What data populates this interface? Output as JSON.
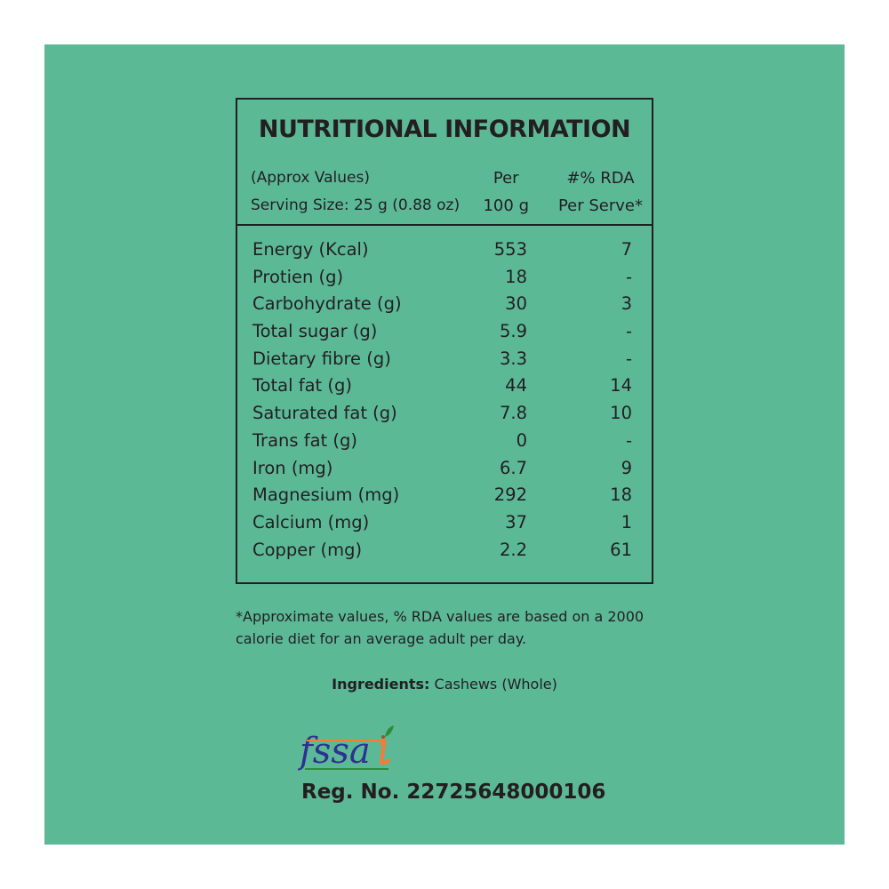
{
  "colors": {
    "background": "#5cb995",
    "text": "#231f20"
  },
  "title": "NUTRITIONAL INFORMATION",
  "header": {
    "approx": "(Approx Values)",
    "serving": "Serving Size: 25 g (0.88 oz)",
    "per1": "Per",
    "per2": "100 g",
    "rda1": "#% RDA",
    "rda2": "Per Serve*"
  },
  "rows": [
    {
      "label": "Energy (Kcal)",
      "per100g": "553",
      "rda": "7"
    },
    {
      "label": "Protien (g)",
      "per100g": "18",
      "rda": "-"
    },
    {
      "label": "Carbohydrate (g)",
      "per100g": "30",
      "rda": "3"
    },
    {
      "label": "Total sugar (g)",
      "per100g": "5.9",
      "rda": "-"
    },
    {
      "label": "Dietary fibre (g)",
      "per100g": "3.3",
      "rda": "-"
    },
    {
      "label": "Total fat (g)",
      "per100g": "44",
      "rda": "14"
    },
    {
      "label": "Saturated fat (g)",
      "per100g": "7.8",
      "rda": "10"
    },
    {
      "label": "Trans fat (g)",
      "per100g": "0",
      "rda": "-"
    },
    {
      "label": "Iron (mg)",
      "per100g": "6.7",
      "rda": "9"
    },
    {
      "label": "Magnesium (mg)",
      "per100g": "292",
      "rda": "18"
    },
    {
      "label": "Calcium (mg)",
      "per100g": "37",
      "rda": "1"
    },
    {
      "label": "Copper (mg)",
      "per100g": "2.2",
      "rda": "61"
    }
  ],
  "note": "*Approximate values, % RDA values are based on a 2000 calorie diet for an average adult per day.",
  "ingredients": {
    "label": "Ingredients:",
    "value": "Cashews (Whole)"
  },
  "logo_text": "fssai",
  "reg": "Reg. No. 22725648000106"
}
